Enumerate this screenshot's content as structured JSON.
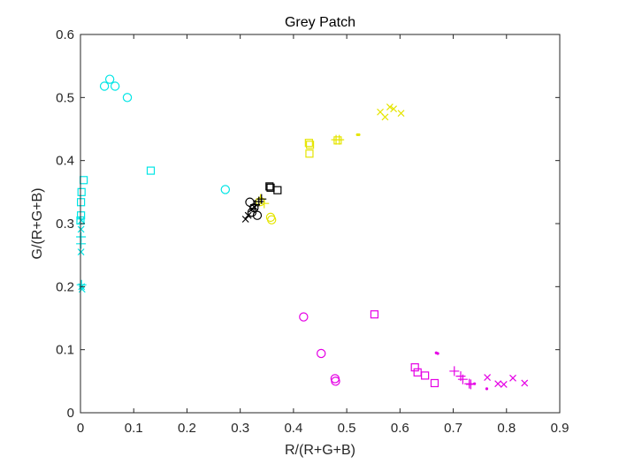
{
  "chart_data": {
    "type": "scatter",
    "title": "Grey Patch",
    "xlabel": "R/(R+G+B)",
    "ylabel": "G/(R+G+B)",
    "xlim": [
      0,
      0.9
    ],
    "ylim": [
      0,
      0.6
    ],
    "xticks": [
      "0",
      "0.1",
      "0.2",
      "0.3",
      "0.4",
      "0.5",
      "0.6",
      "0.7",
      "0.8",
      "0.9"
    ],
    "yticks": [
      "0",
      "0.1",
      "0.2",
      "0.3",
      "0.4",
      "0.5",
      "0.6"
    ],
    "grid": false,
    "legend": "none",
    "series": [
      {
        "color": "#00e5e5",
        "marker": "circle",
        "points": [
          [
            0.045,
            0.518
          ],
          [
            0.055,
            0.529
          ],
          [
            0.065,
            0.518
          ],
          [
            0.088,
            0.5
          ],
          [
            0.272,
            0.354
          ]
        ]
      },
      {
        "color": "#00e5e5",
        "marker": "square",
        "points": [
          [
            0.132,
            0.384
          ],
          [
            0.006,
            0.369
          ],
          [
            0.002,
            0.35
          ],
          [
            0.001,
            0.334
          ],
          [
            0.001,
            0.313
          ],
          [
            0.0,
            0.305
          ]
        ]
      },
      {
        "color": "#00e5e5",
        "marker": "x",
        "points": [
          [
            0.002,
            0.305
          ],
          [
            0.001,
            0.291
          ],
          [
            0.001,
            0.255
          ],
          [
            0.002,
            0.2
          ],
          [
            0.003,
            0.196
          ]
        ]
      },
      {
        "color": "#00e5e5",
        "marker": "plus",
        "points": [
          [
            0.001,
            0.279
          ],
          [
            0.001,
            0.268
          ],
          [
            0.002,
            0.203
          ]
        ]
      },
      {
        "color": "#e5e500",
        "marker": "circle",
        "points": [
          [
            0.357,
            0.31
          ],
          [
            0.359,
            0.306
          ],
          [
            0.338,
            0.335
          ]
        ]
      },
      {
        "color": "#e5e500",
        "marker": "square",
        "points": [
          [
            0.429,
            0.428
          ],
          [
            0.431,
            0.425
          ],
          [
            0.43,
            0.411
          ],
          [
            0.483,
            0.432
          ]
        ]
      },
      {
        "color": "#e5e500",
        "marker": "plus",
        "points": [
          [
            0.48,
            0.433
          ],
          [
            0.486,
            0.433
          ],
          [
            0.338,
            0.339
          ],
          [
            0.345,
            0.332
          ]
        ]
      },
      {
        "color": "#e5e500",
        "marker": "x",
        "points": [
          [
            0.563,
            0.477
          ],
          [
            0.572,
            0.469
          ],
          [
            0.581,
            0.485
          ],
          [
            0.588,
            0.482
          ],
          [
            0.602,
            0.475
          ]
        ]
      },
      {
        "color": "#e5e500",
        "marker": "dot",
        "points": [
          [
            0.52,
            0.441
          ],
          [
            0.523,
            0.441
          ]
        ]
      },
      {
        "color": "#000000",
        "marker": "circle",
        "points": [
          [
            0.318,
            0.334
          ],
          [
            0.326,
            0.325
          ],
          [
            0.322,
            0.318
          ],
          [
            0.332,
            0.313
          ]
        ]
      },
      {
        "color": "#000000",
        "marker": "square",
        "points": [
          [
            0.355,
            0.359
          ],
          [
            0.357,
            0.357
          ],
          [
            0.37,
            0.353
          ]
        ]
      },
      {
        "color": "#000000",
        "marker": "x",
        "points": [
          [
            0.31,
            0.307
          ],
          [
            0.315,
            0.313
          ],
          [
            0.322,
            0.323
          ],
          [
            0.327,
            0.326
          ]
        ]
      },
      {
        "color": "#000000",
        "marker": "plus",
        "points": [
          [
            0.328,
            0.33
          ],
          [
            0.335,
            0.335
          ],
          [
            0.34,
            0.339
          ]
        ]
      },
      {
        "color": "#e500e5",
        "marker": "circle",
        "points": [
          [
            0.419,
            0.152
          ],
          [
            0.452,
            0.094
          ],
          [
            0.478,
            0.054
          ],
          [
            0.479,
            0.05
          ]
        ]
      },
      {
        "color": "#e500e5",
        "marker": "square",
        "points": [
          [
            0.552,
            0.156
          ],
          [
            0.628,
            0.072
          ],
          [
            0.633,
            0.064
          ],
          [
            0.647,
            0.059
          ],
          [
            0.665,
            0.047
          ]
        ]
      },
      {
        "color": "#e500e5",
        "marker": "plus",
        "points": [
          [
            0.702,
            0.066
          ],
          [
            0.714,
            0.058
          ],
          [
            0.718,
            0.053
          ],
          [
            0.73,
            0.046
          ],
          [
            0.733,
            0.045
          ]
        ]
      },
      {
        "color": "#e500e5",
        "marker": "x",
        "points": [
          [
            0.764,
            0.056
          ],
          [
            0.784,
            0.046
          ],
          [
            0.795,
            0.045
          ],
          [
            0.812,
            0.055
          ],
          [
            0.834,
            0.047
          ]
        ]
      },
      {
        "color": "#e500e5",
        "marker": "dot",
        "points": [
          [
            0.668,
            0.095
          ],
          [
            0.671,
            0.094
          ],
          [
            0.74,
            0.046
          ],
          [
            0.763,
            0.038
          ]
        ]
      }
    ]
  }
}
